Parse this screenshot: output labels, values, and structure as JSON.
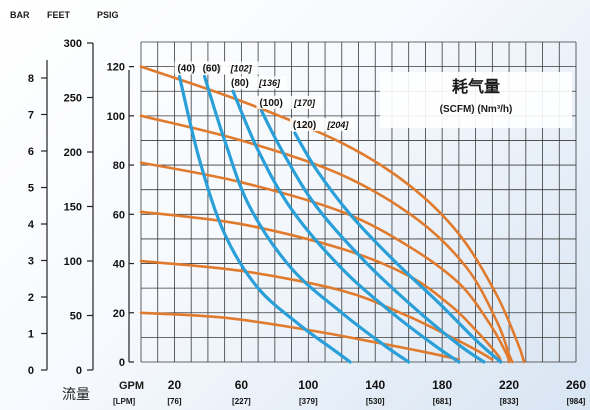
{
  "chart_data": {
    "type": "line",
    "title": "耗气量",
    "subtitle": "(SCFM) (Nm³/h)",
    "colors": {
      "air_consumption": "#e07b2e",
      "pressure": "#2a9fd8",
      "grid": "#3a3a3a"
    },
    "axes": {
      "x": {
        "unit_primary": "GPM",
        "unit_secondary": "[LPM]",
        "label": "流量",
        "range": [
          0,
          260
        ],
        "ticks": [
          {
            "value": 20,
            "label": "20",
            "sub": "[76]"
          },
          {
            "value": 60,
            "label": "60",
            "sub": "[227]"
          },
          {
            "value": 100,
            "label": "100",
            "sub": "[379]"
          },
          {
            "value": 140,
            "label": "140",
            "sub": "[530]"
          },
          {
            "value": 180,
            "label": "180",
            "sub": "[681]"
          },
          {
            "value": 220,
            "label": "220",
            "sub": "[833]"
          },
          {
            "value": 260,
            "label": "260",
            "sub": "[984]"
          }
        ]
      },
      "y_psig": {
        "header": "PSIG",
        "range": [
          0,
          130
        ],
        "ticks": [
          {
            "value": 0,
            "label": "0"
          },
          {
            "value": 20,
            "label": "20"
          },
          {
            "value": 40,
            "label": "40"
          },
          {
            "value": 60,
            "label": "60"
          },
          {
            "value": 80,
            "label": "80"
          },
          {
            "value": 100,
            "label": "100"
          },
          {
            "value": 120,
            "label": "120"
          }
        ]
      },
      "y_feet": {
        "header": "FEET",
        "ticks": [
          {
            "value": 0,
            "label": "0"
          },
          {
            "value": 50,
            "label": "50"
          },
          {
            "value": 100,
            "label": "100"
          },
          {
            "value": 150,
            "label": "150"
          },
          {
            "value": 200,
            "label": "200"
          },
          {
            "value": 250,
            "label": "250"
          },
          {
            "value": 300,
            "label": "300"
          }
        ]
      },
      "y_bar": {
        "header": "BAR",
        "ticks": [
          {
            "value": 0,
            "label": "0"
          },
          {
            "value": 1,
            "label": "1"
          },
          {
            "value": 2,
            "label": "2"
          },
          {
            "value": 3,
            "label": "3"
          },
          {
            "value": 4,
            "label": "4"
          },
          {
            "value": 5,
            "label": "5"
          },
          {
            "value": 6,
            "label": "6"
          },
          {
            "value": 7,
            "label": "7"
          },
          {
            "value": 8,
            "label": "8"
          }
        ]
      }
    },
    "grid": true,
    "pressure_curves": [
      {
        "points": [
          [
            0,
            120
          ],
          [
            60,
            106
          ],
          [
            120,
            89
          ],
          [
            160,
            72
          ],
          [
            190,
            52
          ],
          [
            212,
            28
          ],
          [
            225,
            8
          ],
          [
            229,
            0
          ]
        ]
      },
      {
        "points": [
          [
            0,
            100
          ],
          [
            60,
            90
          ],
          [
            120,
            76
          ],
          [
            165,
            58
          ],
          [
            195,
            38
          ],
          [
            213,
            16
          ],
          [
            220,
            3
          ],
          [
            222,
            0
          ]
        ]
      },
      {
        "points": [
          [
            0,
            81
          ],
          [
            60,
            73
          ],
          [
            120,
            61
          ],
          [
            160,
            47
          ],
          [
            190,
            32
          ],
          [
            208,
            16
          ],
          [
            218,
            4
          ],
          [
            220,
            0
          ]
        ]
      },
      {
        "points": [
          [
            0,
            61
          ],
          [
            60,
            56
          ],
          [
            120,
            46
          ],
          [
            160,
            35
          ],
          [
            185,
            23
          ],
          [
            200,
            13
          ],
          [
            213,
            3
          ],
          [
            215,
            0
          ]
        ]
      },
      {
        "points": [
          [
            0,
            41
          ],
          [
            60,
            37
          ],
          [
            120,
            29
          ],
          [
            155,
            20
          ],
          [
            180,
            12
          ],
          [
            200,
            5
          ],
          [
            210,
            1
          ]
        ]
      },
      {
        "points": [
          [
            0,
            20
          ],
          [
            50,
            18
          ],
          [
            100,
            13
          ],
          [
            140,
            8
          ],
          [
            170,
            4
          ],
          [
            190,
            1
          ]
        ]
      }
    ],
    "air_consumption_curves": [
      {
        "label": "(40)",
        "label2": "[68]",
        "points": [
          [
            23,
            116
          ],
          [
            35,
            82
          ],
          [
            50,
            52
          ],
          [
            70,
            30
          ],
          [
            95,
            15
          ],
          [
            115,
            5
          ],
          [
            125,
            0
          ]
        ]
      },
      {
        "label": "(60)",
        "label2": "[102]",
        "points": [
          [
            38,
            116
          ],
          [
            50,
            90
          ],
          [
            65,
            63
          ],
          [
            90,
            38
          ],
          [
            120,
            20
          ],
          [
            145,
            7
          ],
          [
            160,
            0
          ]
        ]
      },
      {
        "label": "(80)",
        "label2": "[136]",
        "points": [
          [
            55,
            110
          ],
          [
            70,
            86
          ],
          [
            90,
            62
          ],
          [
            120,
            38
          ],
          [
            150,
            20
          ],
          [
            175,
            7
          ],
          [
            190,
            0
          ]
        ]
      },
      {
        "label": "(100)",
        "label2": "[170]",
        "points": [
          [
            72,
            102
          ],
          [
            85,
            85
          ],
          [
            105,
            63
          ],
          [
            135,
            40
          ],
          [
            165,
            21
          ],
          [
            190,
            7
          ],
          [
            205,
            0
          ]
        ]
      },
      {
        "label": "(120)",
        "label2": "[204]",
        "points": [
          [
            92,
            93
          ],
          [
            105,
            78
          ],
          [
            125,
            60
          ],
          [
            150,
            42
          ],
          [
            178,
            24
          ],
          [
            200,
            9
          ],
          [
            215,
            0
          ]
        ]
      }
    ]
  }
}
